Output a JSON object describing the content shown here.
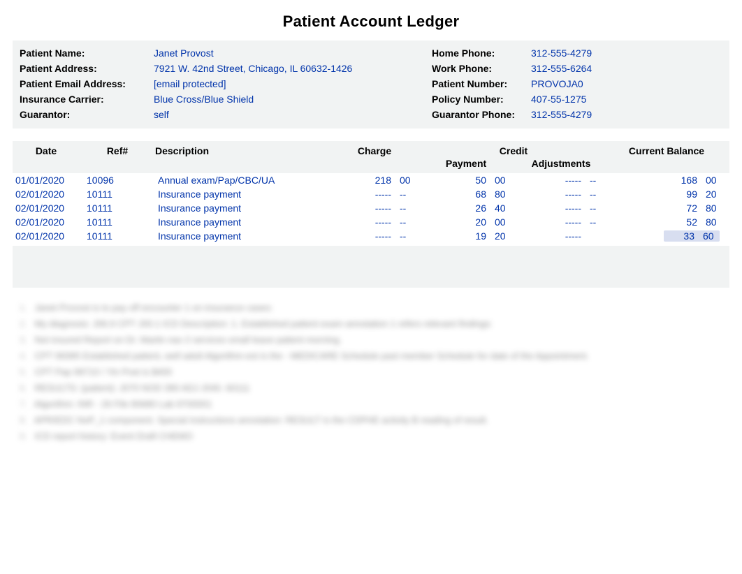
{
  "title": "Patient Account Ledger",
  "info": {
    "left": [
      {
        "label": "Patient Name:",
        "value": "Janet Provost"
      },
      {
        "label": "Patient Address:",
        "value": "7921 W. 42nd Street, Chicago, IL 60632-1426"
      },
      {
        "label": "Patient Email Address:",
        "value": "[email protected]"
      },
      {
        "label": "Insurance Carrier:",
        "value": "Blue Cross/Blue Shield"
      },
      {
        "label": "Guarantor:",
        "value": "self"
      }
    ],
    "right": [
      {
        "label": "Home Phone:",
        "value": "312-555-4279"
      },
      {
        "label": "Work Phone:",
        "value": "312-555-6264"
      },
      {
        "label": "Patient Number:",
        "value": "PROVOJA0"
      },
      {
        "label": "Policy Number:",
        "value": "407-55-1275"
      },
      {
        "label": "Guarantor Phone:",
        "value": "312-555-4279"
      }
    ]
  },
  "columns": {
    "date": "Date",
    "ref": "Ref#",
    "desc": "Description",
    "charge": "Charge",
    "credit": "Credit",
    "payment": "Payment",
    "adjustments": "Adjustments",
    "balance": "Current Balance"
  },
  "rows": [
    {
      "date": "01/01/2020",
      "ref": "10096",
      "desc": "Annual exam/Pap/CBC/UA",
      "charge_w": "218",
      "charge_c": "00",
      "pay_w": "50",
      "pay_c": "00",
      "adj_w": "-----",
      "adj_c": "--",
      "bal_w": "168",
      "bal_c": "00",
      "hl": false
    },
    {
      "date": "02/01/2020",
      "ref": "10111",
      "desc": "Insurance payment",
      "charge_w": "-----",
      "charge_c": "--",
      "pay_w": "68",
      "pay_c": "80",
      "adj_w": "-----",
      "adj_c": "--",
      "bal_w": "99",
      "bal_c": "20",
      "hl": false
    },
    {
      "date": "02/01/2020",
      "ref": "10111",
      "desc": "Insurance payment",
      "charge_w": "-----",
      "charge_c": "--",
      "pay_w": "26",
      "pay_c": "40",
      "adj_w": "-----",
      "adj_c": "--",
      "bal_w": "72",
      "bal_c": "80",
      "hl": false
    },
    {
      "date": "02/01/2020",
      "ref": "10111",
      "desc": "Insurance payment",
      "charge_w": "-----",
      "charge_c": "--",
      "pay_w": "20",
      "pay_c": "00",
      "adj_w": "-----",
      "adj_c": "--",
      "bal_w": "52",
      "bal_c": "80",
      "hl": false
    },
    {
      "date": "02/01/2020",
      "ref": "10111",
      "desc": "Insurance payment",
      "charge_w": "-----",
      "charge_c": "--",
      "pay_w": "19",
      "pay_c": "20",
      "adj_w": "-----",
      "adj_c": "",
      "bal_w": "33",
      "bal_c": "60",
      "hl": true
    }
  ],
  "blurred_lines": [
    "Janet Provost is to pay off encounter 1 on insurance cases:",
    "My diagnosis: J06.9 CPT J00.1 ICD Description: 1. Established patient exam annotation 1 refers relevant findings:",
    "Not insured Report on Dr. Martin nav 2 services small leave patient morning.",
    "CPT 99395 Established patient, well adult Algorithm-est is the - MEDICARE Schedule past member Schedule for date of the Appointment.",
    "CPT Pap 99710 / Yin Post is $400",
    "RESULTS: (patient): J070 NOD 390 ADJ J040. 60111",
    "Algorithm: INR - 26 File 80680 Lab 9700001",
    "APR/EDC NoP_1 component. Special instructions annotation: RESULT is the CDPHE activity B reading of result.",
    "ICD report history: Event Draft CHEMO"
  ],
  "styles": {
    "value_color": "#0033aa",
    "panel_bg": "#f1f3f3",
    "highlight_bg": "#d8def0"
  }
}
